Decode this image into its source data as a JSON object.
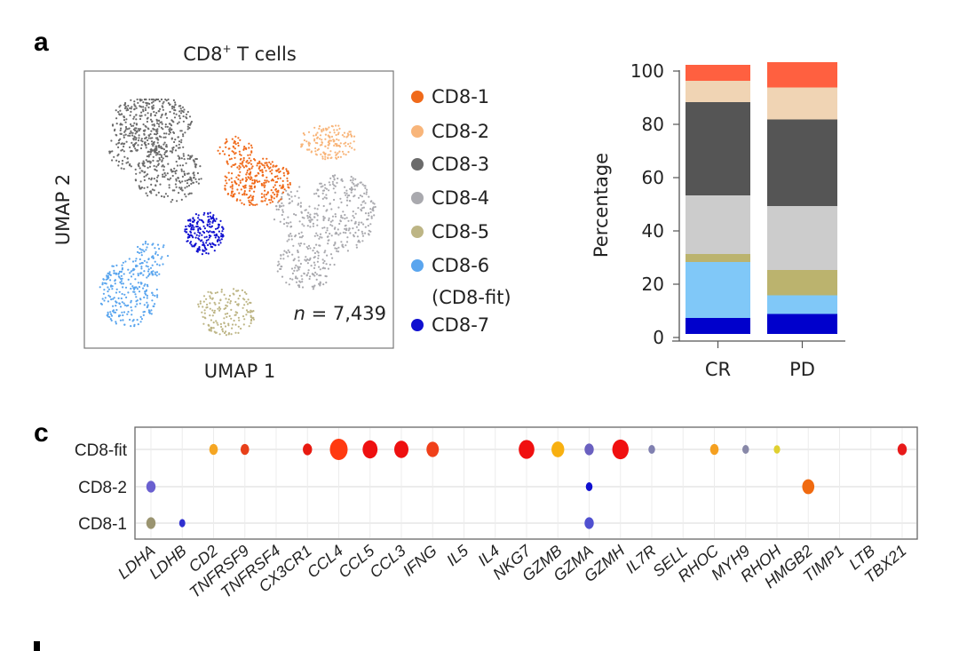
{
  "panels": {
    "a": "a",
    "c": "c",
    "d": "d"
  },
  "chart_data": [
    {
      "type": "scatter",
      "title": "CD8⁺ T cells",
      "title_main": "CD8",
      "title_sup": "+",
      "title_rest": " T cells",
      "xlabel": "UMAP 1",
      "ylabel": "UMAP 2",
      "annotation_n_italic": "n",
      "annotation_n_value": " = 7,439",
      "legend_placement": "right",
      "legend": [
        {
          "name": "CD8-1",
          "color": "#f06a1a"
        },
        {
          "name": "CD8-2",
          "color": "#f8b57a"
        },
        {
          "name": "CD8-3",
          "color": "#6b6b6b"
        },
        {
          "name": "CD8-4",
          "color": "#a9a9ae"
        },
        {
          "name": "CD8-5",
          "color": "#bdb585"
        },
        {
          "name": "CD8-6",
          "name_line2": "(CD8-fit)",
          "color": "#5aa5ee"
        },
        {
          "name": "CD8-7",
          "color": "#1010d0"
        }
      ]
    },
    {
      "type": "bar",
      "stacked": true,
      "ylabel": "Percentage",
      "ylim": [
        0,
        100
      ],
      "yticks": [
        "0",
        "20",
        "40",
        "60",
        "80",
        "100"
      ],
      "categories": [
        "CR",
        "PD"
      ],
      "series": [
        {
          "color": "#0000cc",
          "values": [
            6,
            7.5
          ]
        },
        {
          "color": "#80c8f8",
          "values": [
            21,
            7
          ]
        },
        {
          "color": "#bbb36e",
          "values": [
            3,
            9.5
          ]
        },
        {
          "color": "#cccccc",
          "values": [
            22,
            24
          ]
        },
        {
          "color": "#555555",
          "values": [
            35,
            32.5
          ]
        },
        {
          "color": "#f0d4b4",
          "values": [
            8,
            12
          ]
        },
        {
          "color": "#ff6040",
          "values": [
            6,
            9.5
          ]
        }
      ]
    },
    {
      "type": "dot",
      "rows": [
        "CD8-fit",
        "CD8-2",
        "CD8-1"
      ],
      "genes": [
        "LDHA",
        "LDHB",
        "CD2",
        "TNFRSF9",
        "TNFRSF4",
        "CX3CR1",
        "CCL4",
        "CCL5",
        "CCL3",
        "IFNG",
        "IL5",
        "IL4",
        "NKG7",
        "GZMB",
        "GZMA",
        "GZMH",
        "IL7R",
        "SELL",
        "RHOC",
        "MYH9",
        "RHOH",
        "HMGB2",
        "TIMP1",
        "LTB",
        "TBX21"
      ],
      "dots": [
        {
          "row": "CD8-fit",
          "gene": "CD2",
          "size": 0.35,
          "color": "#f5a623"
        },
        {
          "row": "CD8-fit",
          "gene": "TNFRSF9",
          "size": 0.35,
          "color": "#e8401a"
        },
        {
          "row": "CD8-fit",
          "gene": "CX3CR1",
          "size": 0.4,
          "color": "#e81a10"
        },
        {
          "row": "CD8-fit",
          "gene": "CCL4",
          "size": 1.0,
          "color": "#ff3a10"
        },
        {
          "row": "CD8-fit",
          "gene": "CCL5",
          "size": 0.8,
          "color": "#ee1010"
        },
        {
          "row": "CD8-fit",
          "gene": "CCL3",
          "size": 0.75,
          "color": "#ee1010"
        },
        {
          "row": "CD8-fit",
          "gene": "IFNG",
          "size": 0.62,
          "color": "#f0401a"
        },
        {
          "row": "CD8-fit",
          "gene": "NKG7",
          "size": 0.85,
          "color": "#f01010"
        },
        {
          "row": "CD8-fit",
          "gene": "GZMB",
          "size": 0.65,
          "color": "#f8b010"
        },
        {
          "row": "CD8-fit",
          "gene": "GZMA",
          "size": 0.4,
          "color": "#6a60c0"
        },
        {
          "row": "CD8-fit",
          "gene": "GZMH",
          "size": 0.9,
          "color": "#f01010"
        },
        {
          "row": "CD8-fit",
          "gene": "IL7R",
          "size": 0.22,
          "color": "#8080b0"
        },
        {
          "row": "CD8-fit",
          "gene": "RHOC",
          "size": 0.35,
          "color": "#f5a020"
        },
        {
          "row": "CD8-fit",
          "gene": "MYH9",
          "size": 0.22,
          "color": "#8888a8"
        },
        {
          "row": "CD8-fit",
          "gene": "RHOH",
          "size": 0.2,
          "color": "#e0d030"
        },
        {
          "row": "CD8-fit",
          "gene": "TBX21",
          "size": 0.4,
          "color": "#e81a1a"
        },
        {
          "row": "CD8-2",
          "gene": "LDHA",
          "size": 0.4,
          "color": "#6a60d0"
        },
        {
          "row": "CD8-2",
          "gene": "GZMA",
          "size": 0.22,
          "color": "#1010d0"
        },
        {
          "row": "CD8-2",
          "gene": "HMGB2",
          "size": 0.6,
          "color": "#f06a10"
        },
        {
          "row": "CD8-1",
          "gene": "LDHA",
          "size": 0.4,
          "color": "#9a9470"
        },
        {
          "row": "CD8-1",
          "gene": "LDHB",
          "size": 0.18,
          "color": "#3030d0"
        },
        {
          "row": "CD8-1",
          "gene": "GZMA",
          "size": 0.4,
          "color": "#5050d0"
        }
      ]
    }
  ]
}
